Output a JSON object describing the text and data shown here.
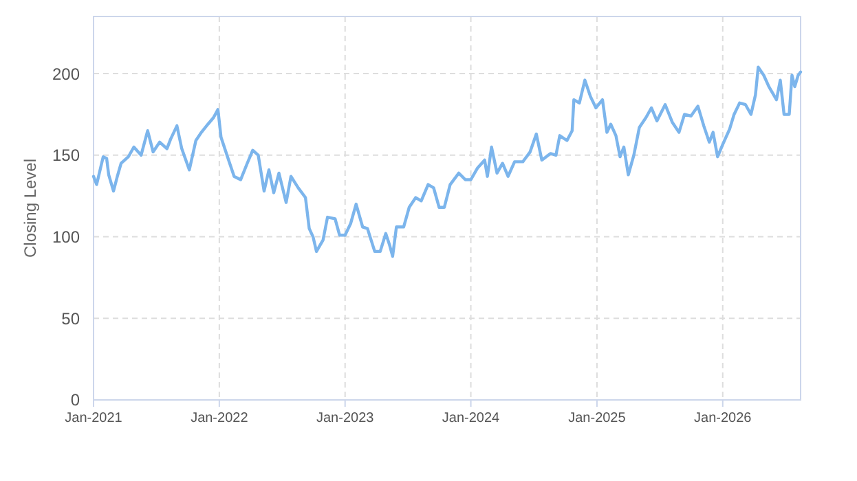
{
  "chart_data": {
    "type": "line",
    "ylabel": "Closing Level",
    "x": [
      "2021-01-01",
      "2021-01-10",
      "2021-01-29",
      "2021-02-08",
      "2021-02-14",
      "2021-02-28",
      "2021-03-11",
      "2021-03-22",
      "2021-04-12",
      "2021-04-28",
      "2021-05-19",
      "2021-06-07",
      "2021-06-23",
      "2021-07-12",
      "2021-08-02",
      "2021-08-13",
      "2021-08-31",
      "2021-09-14",
      "2021-10-06",
      "2021-10-25",
      "2021-11-10",
      "2021-11-29",
      "2021-12-15",
      "2021-12-28",
      "2022-01-06",
      "2022-01-28",
      "2022-02-13",
      "2022-03-04",
      "2022-03-23",
      "2022-04-08",
      "2022-04-24",
      "2022-05-11",
      "2022-05-25",
      "2022-06-08",
      "2022-06-23",
      "2022-07-14",
      "2022-07-28",
      "2022-08-18",
      "2022-09-08",
      "2022-09-19",
      "2022-09-30",
      "2022-10-10",
      "2022-10-29",
      "2022-11-11",
      "2022-12-03",
      "2022-12-16",
      "2023-01-01",
      "2023-01-17",
      "2023-02-02",
      "2023-02-21",
      "2023-03-07",
      "2023-03-28",
      "2023-04-13",
      "2023-04-29",
      "2023-05-10",
      "2023-05-19",
      "2023-05-30",
      "2023-06-20",
      "2023-07-06",
      "2023-07-25",
      "2023-08-10",
      "2023-08-30",
      "2023-09-15",
      "2023-10-01",
      "2023-10-16",
      "2023-11-02",
      "2023-11-27",
      "2023-12-16",
      "2024-01-01",
      "2024-01-20",
      "2024-02-10",
      "2024-02-18",
      "2024-03-01",
      "2024-03-17",
      "2024-04-02",
      "2024-04-18",
      "2024-05-07",
      "2024-05-31",
      "2024-06-21",
      "2024-07-09",
      "2024-07-25",
      "2024-08-19",
      "2024-09-04",
      "2024-09-15",
      "2024-10-06",
      "2024-10-21",
      "2024-10-26",
      "2024-11-11",
      "2024-11-27",
      "2024-12-13",
      "2024-12-29",
      "2025-01-17",
      "2025-01-30",
      "2025-02-10",
      "2025-02-25",
      "2025-03-09",
      "2025-03-20",
      "2025-04-02",
      "2025-04-18",
      "2025-05-04",
      "2025-05-23",
      "2025-06-08",
      "2025-06-24",
      "2025-07-18",
      "2025-08-08",
      "2025-08-27",
      "2025-09-12",
      "2025-10-01",
      "2025-10-21",
      "2025-11-07",
      "2025-11-23",
      "2025-12-04",
      "2025-12-17",
      "2026-01-02",
      "2026-01-21",
      "2026-02-03",
      "2026-02-19",
      "2026-03-08",
      "2026-03-24",
      "2026-04-06",
      "2026-04-14",
      "2026-04-30",
      "2026-05-15",
      "2026-06-06",
      "2026-06-17",
      "2026-06-28",
      "2026-07-13",
      "2026-07-21",
      "2026-07-29",
      "2026-08-08",
      "2026-08-15"
    ],
    "series": [
      {
        "color": "#7cb5ec",
        "values": [
          137,
          132,
          149,
          148,
          138,
          128,
          137,
          145,
          149,
          155,
          150,
          165,
          152,
          158,
          154,
          160,
          168,
          154,
          141,
          159,
          164,
          169,
          173,
          178,
          161,
          147,
          137,
          135,
          145,
          153,
          150,
          128,
          141,
          127,
          139,
          121,
          137,
          130,
          124,
          105,
          100,
          91,
          98,
          112,
          111,
          101,
          101,
          108,
          120,
          106,
          105,
          91,
          91,
          102,
          95,
          88,
          106,
          106,
          118,
          124,
          122,
          132,
          130,
          118,
          118,
          132,
          139,
          135,
          135,
          142,
          147,
          137,
          155,
          139,
          145,
          137,
          146,
          146,
          152,
          163,
          147,
          151,
          150,
          162,
          159,
          165,
          184,
          182,
          196,
          186,
          179,
          184,
          164,
          169,
          162,
          149,
          155,
          138,
          150,
          167,
          173,
          179,
          171,
          181,
          170,
          164,
          175,
          174,
          180,
          168,
          158,
          164,
          149,
          157,
          166,
          175,
          182,
          181,
          175,
          187,
          204,
          199,
          192,
          184,
          196,
          175,
          175,
          199,
          192,
          199,
          201
        ]
      }
    ],
    "xlim": [
      "2021-01-01",
      "2026-08-15"
    ],
    "xticks": [
      {
        "value": "2021-01-01",
        "label": "Jan-2021"
      },
      {
        "value": "2022-01-01",
        "label": "Jan-2022"
      },
      {
        "value": "2023-01-01",
        "label": "Jan-2023"
      },
      {
        "value": "2024-01-01",
        "label": "Jan-2024"
      },
      {
        "value": "2025-01-01",
        "label": "Jan-2025"
      },
      {
        "value": "2026-01-01",
        "label": "Jan-2026"
      }
    ],
    "ylim": [
      0,
      235
    ],
    "yticks": [
      0,
      50,
      100,
      150,
      200
    ],
    "grid": true,
    "marker": "none",
    "line_style": "solid"
  }
}
